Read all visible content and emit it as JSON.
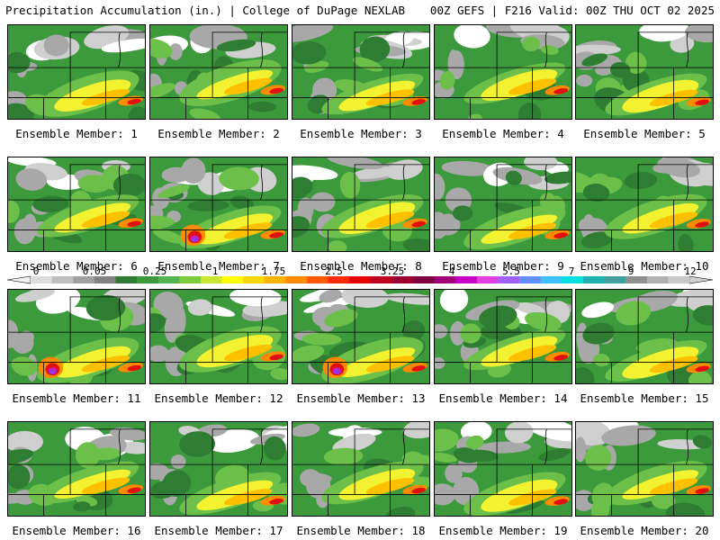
{
  "header": {
    "left": "Precipitation Accumulation (in.) | College of DuPage NEXLAB",
    "right": "00Z GEFS | F216 Valid: 00Z THU OCT 02 2025"
  },
  "panels": [
    {
      "label": "Ensemble Member: 1"
    },
    {
      "label": "Ensemble Member: 2"
    },
    {
      "label": "Ensemble Member: 3"
    },
    {
      "label": "Ensemble Member: 4"
    },
    {
      "label": "Ensemble Member: 5"
    },
    {
      "label": "Ensemble Member: 6"
    },
    {
      "label": "Ensemble Member: 7"
    },
    {
      "label": "Ensemble Member: 8"
    },
    {
      "label": "Ensemble Member: 9"
    },
    {
      "label": "Ensemble Member: 10"
    },
    {
      "label": "Ensemble Member: 11"
    },
    {
      "label": "Ensemble Member: 12"
    },
    {
      "label": "Ensemble Member: 13"
    },
    {
      "label": "Ensemble Member: 14"
    },
    {
      "label": "Ensemble Member: 15"
    },
    {
      "label": "Ensemble Member: 16"
    },
    {
      "label": "Ensemble Member: 17"
    },
    {
      "label": "Ensemble Member: 18"
    },
    {
      "label": "Ensemble Member: 19"
    },
    {
      "label": "Ensemble Member: 20"
    }
  ],
  "colorbar": {
    "tick_labels": [
      "0",
      "0.05",
      "0.25",
      "1",
      "1.75",
      "2.5",
      "3.25",
      "4",
      "5.5",
      "7",
      "9",
      "12"
    ],
    "colors": [
      "#dcdcdc",
      "#bebebe",
      "#a0a0a0",
      "#828282",
      "#2e7d32",
      "#3c9a3c",
      "#52b552",
      "#7acc3a",
      "#c8e632",
      "#ffff00",
      "#ffd700",
      "#ffb300",
      "#ff8c00",
      "#ff5a00",
      "#ff2a00",
      "#e60000",
      "#c00020",
      "#9a0030",
      "#800040",
      "#a0007a",
      "#c800c8",
      "#e040e0",
      "#a060ff",
      "#6090ff",
      "#40c0ff",
      "#00e0e0",
      "#20b0b0",
      "#40a0a0",
      "#909090",
      "#b0b0b0",
      "#c8c8c8"
    ]
  }
}
